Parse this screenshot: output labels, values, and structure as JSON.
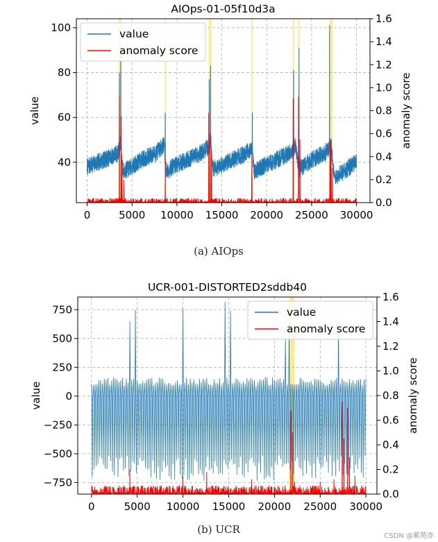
{
  "chart_data": [
    {
      "type": "line",
      "title": "AIOps-01-05f10d3a",
      "caption": "(a)  AIOps",
      "xlabel": "",
      "ylabel": "value",
      "y2label": "anomaly score",
      "xlim": [
        -1200,
        31500
      ],
      "ylim": [
        22,
        104
      ],
      "y2lim": [
        0.0,
        1.6
      ],
      "xticks": [
        0,
        5000,
        10000,
        15000,
        20000,
        25000,
        30000
      ],
      "yticks": [
        40,
        60,
        80,
        100
      ],
      "y2ticks": [
        "0.0",
        "0.2",
        "0.4",
        "0.6",
        "0.8",
        "1.0",
        "1.2",
        "1.4",
        "1.6"
      ],
      "legend": {
        "position": "top-left",
        "entries": [
          "value",
          "anomaly score"
        ]
      },
      "grid": true,
      "colors": {
        "value": "#1f77b4",
        "anomaly": "#ff0000",
        "highlight": "#ffe680"
      },
      "series": [
        {
          "name": "value",
          "axis": "left",
          "baseline_segments": [
            {
              "x": 0,
              "v": 38
            },
            {
              "x": 1200,
              "v": 40
            },
            {
              "x": 2400,
              "v": 42
            },
            {
              "x": 3400,
              "v": 44
            },
            {
              "x": 3700,
              "v": 48
            },
            {
              "x": 4000,
              "v": 36
            },
            {
              "x": 4600,
              "v": 37
            },
            {
              "x": 6000,
              "v": 41
            },
            {
              "x": 7600,
              "v": 44
            },
            {
              "x": 8600,
              "v": 48
            },
            {
              "x": 8800,
              "v": 36
            },
            {
              "x": 10000,
              "v": 39
            },
            {
              "x": 11600,
              "v": 42
            },
            {
              "x": 13000,
              "v": 45
            },
            {
              "x": 13800,
              "v": 48
            },
            {
              "x": 14000,
              "v": 37
            },
            {
              "x": 15600,
              "v": 40
            },
            {
              "x": 17200,
              "v": 43
            },
            {
              "x": 18300,
              "v": 46
            },
            {
              "x": 18600,
              "v": 36
            },
            {
              "x": 20000,
              "v": 39
            },
            {
              "x": 21600,
              "v": 42
            },
            {
              "x": 22800,
              "v": 45
            },
            {
              "x": 23200,
              "v": 48
            },
            {
              "x": 23600,
              "v": 37
            },
            {
              "x": 25000,
              "v": 41
            },
            {
              "x": 26400,
              "v": 44
            },
            {
              "x": 27200,
              "v": 47
            },
            {
              "x": 27500,
              "v": 33
            },
            {
              "x": 28600,
              "v": 36
            },
            {
              "x": 30000,
              "v": 40
            }
          ],
          "noise": 4,
          "spikes": [
            {
              "x": 3600,
              "v": 80
            },
            {
              "x": 3750,
              "v": 90
            },
            {
              "x": 8700,
              "v": 62
            },
            {
              "x": 13600,
              "v": 77
            },
            {
              "x": 13750,
              "v": 83
            },
            {
              "x": 18400,
              "v": 62
            },
            {
              "x": 23000,
              "v": 81
            },
            {
              "x": 23600,
              "v": 91
            },
            {
              "x": 27000,
              "v": 101
            },
            {
              "x": 27200,
              "v": 50
            }
          ]
        },
        {
          "name": "anomaly score",
          "axis": "right",
          "noise_level": 0.02,
          "spikes": [
            {
              "x": 3600,
              "v": 0.93
            },
            {
              "x": 3800,
              "v": 0.75
            },
            {
              "x": 3900,
              "v": 0.35
            },
            {
              "x": 4100,
              "v": 0.2
            },
            {
              "x": 8700,
              "v": 0.38
            },
            {
              "x": 13550,
              "v": 0.78
            },
            {
              "x": 13700,
              "v": 0.6
            },
            {
              "x": 13850,
              "v": 0.45
            },
            {
              "x": 18350,
              "v": 0.4
            },
            {
              "x": 22950,
              "v": 0.9
            },
            {
              "x": 23550,
              "v": 0.92
            },
            {
              "x": 23700,
              "v": 0.55
            },
            {
              "x": 27050,
              "v": 0.55
            },
            {
              "x": 27150,
              "v": 0.5
            },
            {
              "x": 27300,
              "v": 0.3
            }
          ]
        }
      ],
      "highlight_ranges": [
        [
          3500,
          3800
        ],
        [
          8650,
          8750
        ],
        [
          13550,
          13850
        ],
        [
          18300,
          18400
        ],
        [
          22900,
          23050
        ],
        [
          23500,
          23650
        ],
        [
          27000,
          27350
        ]
      ]
    },
    {
      "type": "line",
      "title": "UCR-001-DISTORTED2sddb40",
      "caption": "(b)  UCR",
      "xlabel": "",
      "ylabel": "value",
      "y2label": "anomaly score",
      "xlim": [
        -1500,
        31200
      ],
      "ylim": [
        -850,
        860
      ],
      "y2lim": [
        0.0,
        1.6
      ],
      "xticks": [
        0,
        5000,
        10000,
        15000,
        20000,
        25000,
        30000
      ],
      "yticks": [
        -750,
        -500,
        -250,
        0,
        250,
        500,
        750
      ],
      "y2ticks": [
        "0.0",
        "0.2",
        "0.4",
        "0.6",
        "0.8",
        "1.0",
        "1.2",
        "1.4",
        "1.6"
      ],
      "legend": {
        "position": "top-right",
        "entries": [
          "value",
          "anomaly score"
        ]
      },
      "grid": true,
      "colors": {
        "value": "#1f77b4",
        "anomaly": "#ff0000",
        "highlight": "#ffe680"
      },
      "series": [
        {
          "name": "value",
          "axis": "left",
          "oscillation": {
            "period": 200,
            "high": 150,
            "low": -640
          },
          "peaks": [
            {
              "x": 4200,
              "v": 650
            },
            {
              "x": 4500,
              "v": 720
            },
            {
              "x": 4800,
              "v": 750
            },
            {
              "x": 10000,
              "v": 760
            },
            {
              "x": 10300,
              "v": 720
            },
            {
              "x": 14600,
              "v": 820
            },
            {
              "x": 15200,
              "v": 740
            },
            {
              "x": 21200,
              "v": 510
            },
            {
              "x": 21600,
              "v": 650
            },
            {
              "x": 26300,
              "v": 520
            },
            {
              "x": 26700,
              "v": 740
            },
            {
              "x": 27000,
              "v": 650
            }
          ]
        },
        {
          "name": "anomaly score",
          "axis": "right",
          "noise_level": 0.035,
          "spikes": [
            {
              "x": 21800,
              "v": 0.68
            },
            {
              "x": 22000,
              "v": 0.5
            },
            {
              "x": 22200,
              "v": 0.1
            },
            {
              "x": 4200,
              "v": 0.2
            },
            {
              "x": 10000,
              "v": 0.15
            },
            {
              "x": 12600,
              "v": 0.18
            },
            {
              "x": 17500,
              "v": 0.12
            },
            {
              "x": 25000,
              "v": 0.1
            },
            {
              "x": 26500,
              "v": 0.12
            },
            {
              "x": 27400,
              "v": 0.75
            },
            {
              "x": 27600,
              "v": 0.45
            },
            {
              "x": 28000,
              "v": 0.7
            },
            {
              "x": 28200,
              "v": 0.3
            },
            {
              "x": 28800,
              "v": 0.15
            }
          ]
        }
      ],
      "highlight_ranges": [
        [
          21600,
          22200
        ]
      ]
    }
  ],
  "watermark": "CSDN @紫苑亦"
}
